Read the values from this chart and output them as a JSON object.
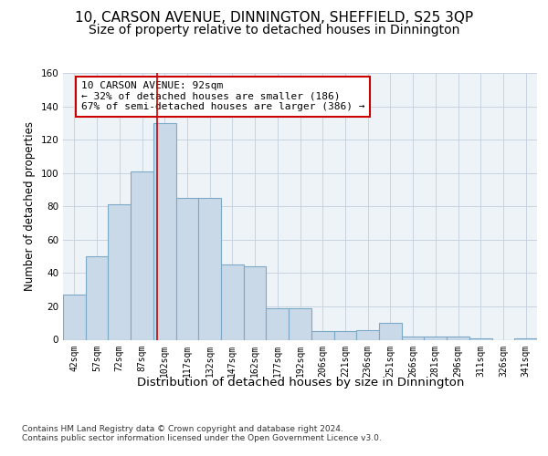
{
  "title_line1": "10, CARSON AVENUE, DINNINGTON, SHEFFIELD, S25 3QP",
  "title_line2": "Size of property relative to detached houses in Dinnington",
  "xlabel": "Distribution of detached houses by size in Dinnington",
  "ylabel": "Number of detached properties",
  "bar_labels": [
    "42sqm",
    "57sqm",
    "72sqm",
    "87sqm",
    "102sqm",
    "117sqm",
    "132sqm",
    "147sqm",
    "162sqm",
    "177sqm",
    "192sqm",
    "206sqm",
    "221sqm",
    "236sqm",
    "251sqm",
    "266sqm",
    "281sqm",
    "296sqm",
    "311sqm",
    "326sqm",
    "341sqm"
  ],
  "bar_values": [
    27,
    50,
    81,
    101,
    130,
    85,
    85,
    45,
    44,
    19,
    19,
    5,
    5,
    6,
    10,
    2,
    2,
    2,
    1,
    0,
    1
  ],
  "bar_color": "#c9d9e8",
  "bar_edge_color": "#7aaac8",
  "vline_x": 3.67,
  "vline_color": "#cc0000",
  "annotation_box_text": "10 CARSON AVENUE: 92sqm\n← 32% of detached houses are smaller (186)\n67% of semi-detached houses are larger (386) →",
  "annotation_box_color": "#cc0000",
  "ylim": [
    0,
    160
  ],
  "yticks": [
    0,
    20,
    40,
    60,
    80,
    100,
    120,
    140,
    160
  ],
  "grid_color": "#c8d4e0",
  "background_color": "#eef3f7",
  "footer": "Contains HM Land Registry data © Crown copyright and database right 2024.\nContains public sector information licensed under the Open Government Licence v3.0.",
  "title_fontsize": 11,
  "subtitle_fontsize": 10,
  "xlabel_fontsize": 9.5,
  "ylabel_fontsize": 8.5,
  "annotation_fontsize": 8,
  "footer_fontsize": 6.5
}
